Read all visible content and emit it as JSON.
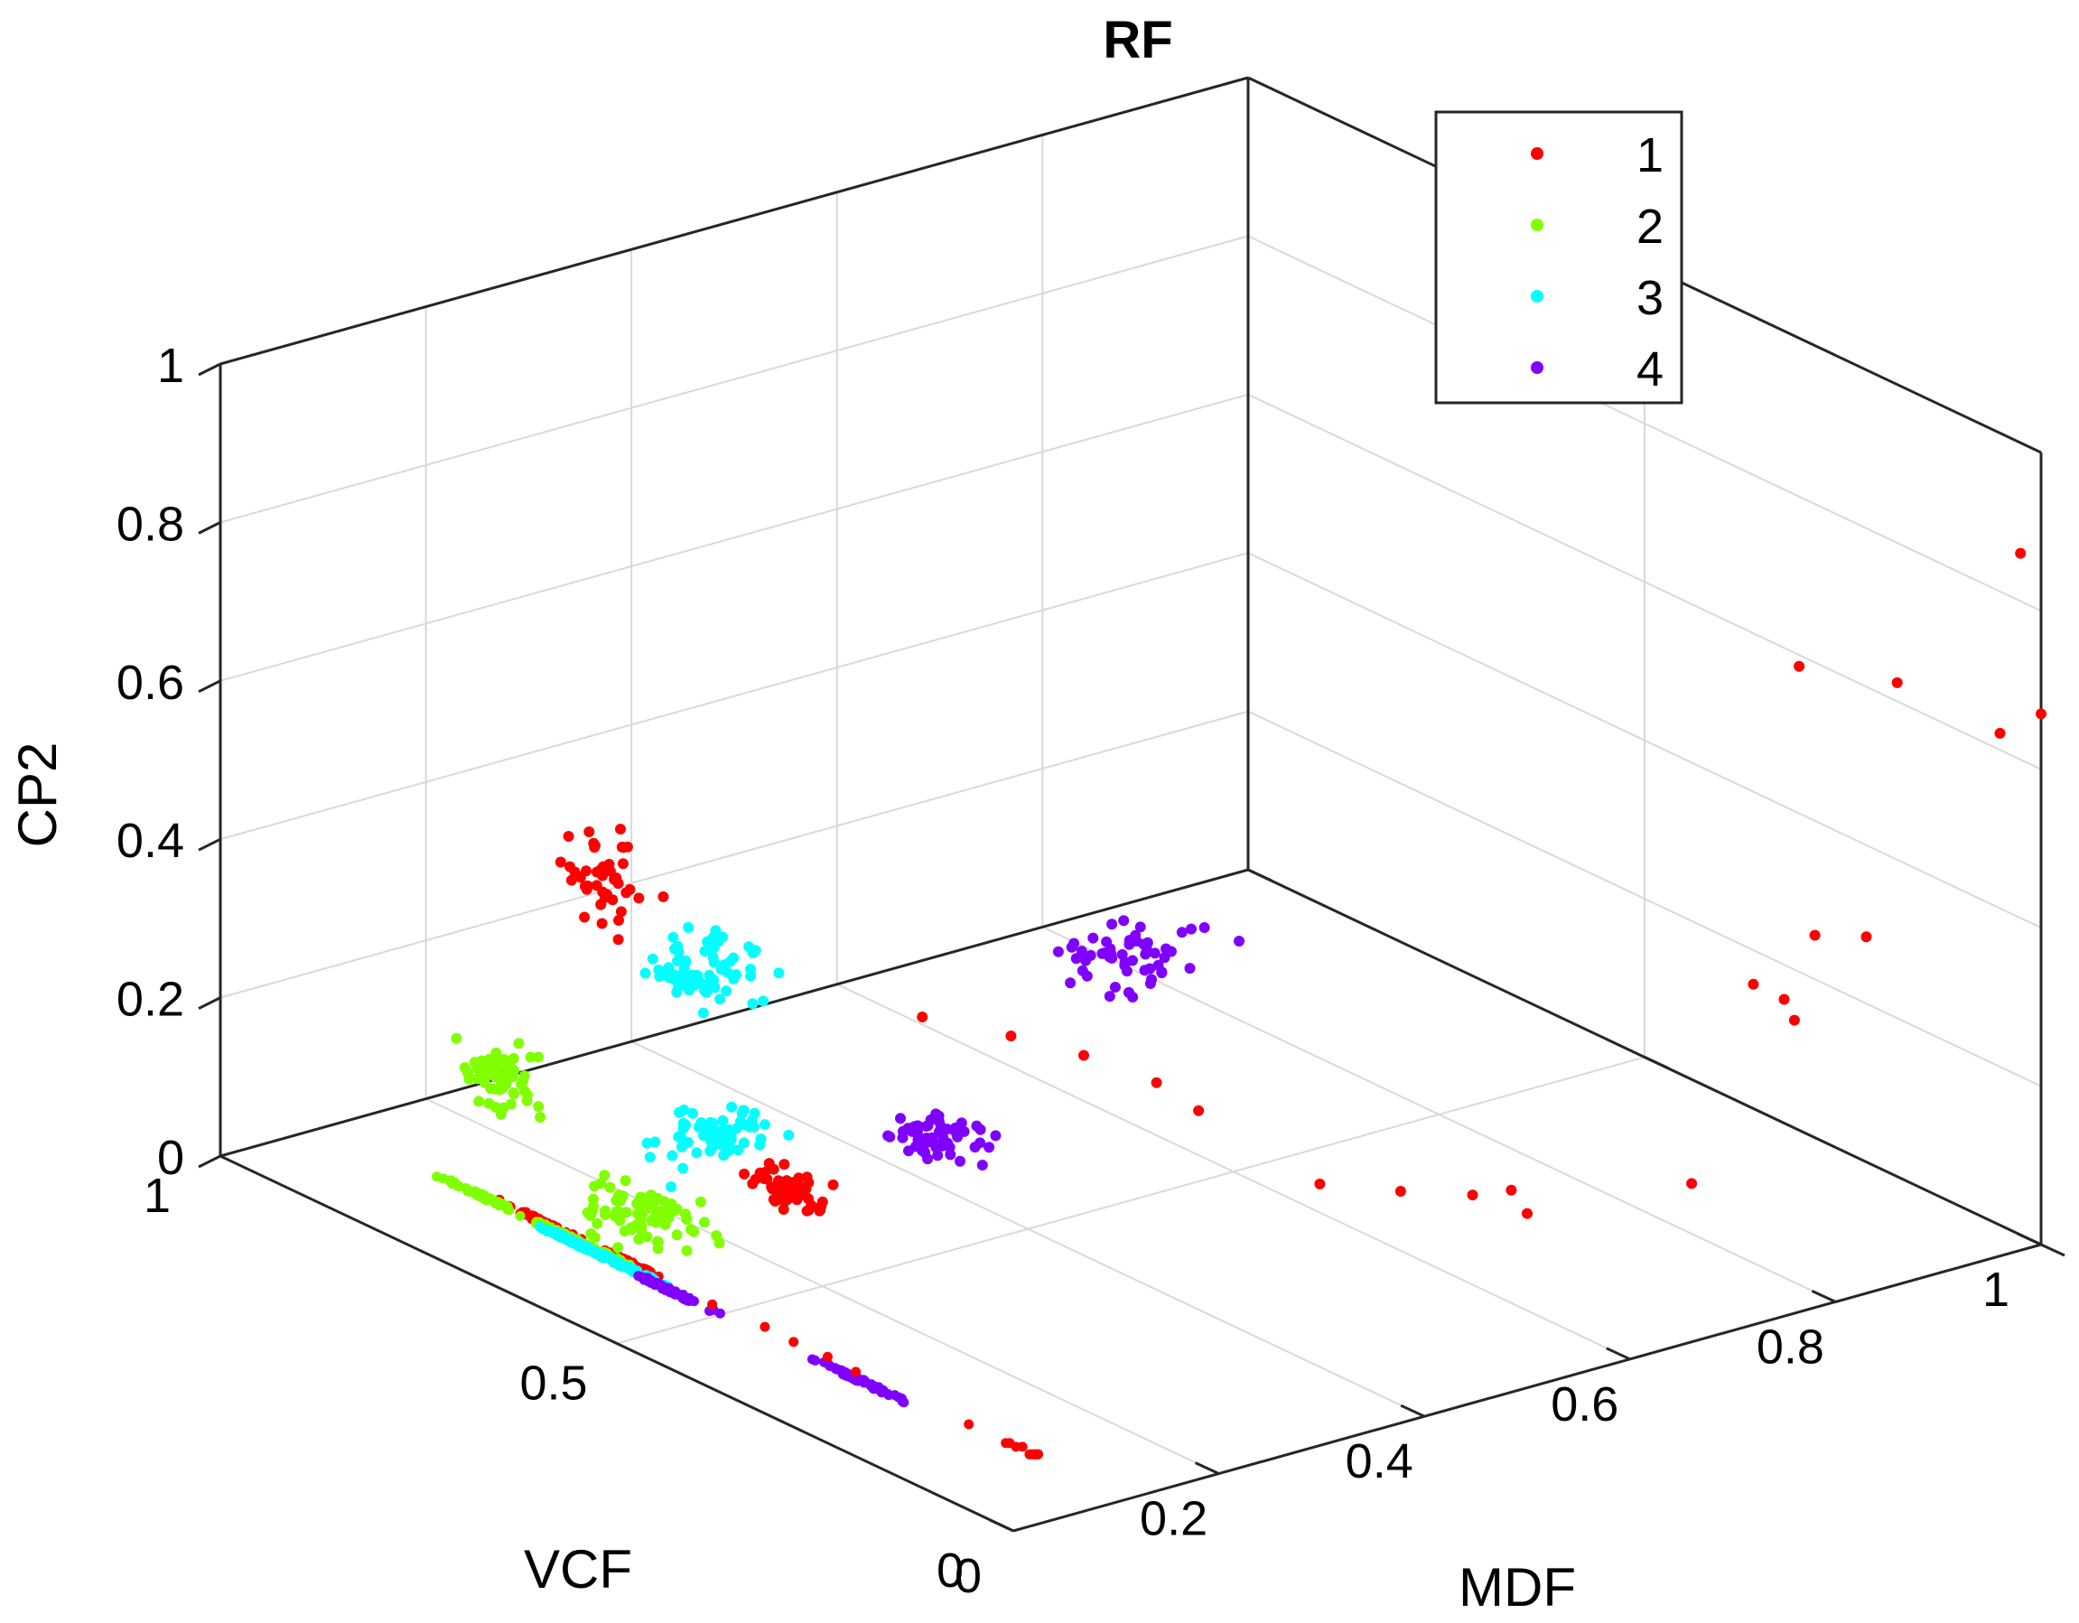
{
  "chart_data": {
    "type": "scatter3d",
    "title": "RF",
    "xlabel": "MDF",
    "ylabel": "VCF",
    "zlabel": "CP2",
    "xlim": [
      0,
      1
    ],
    "ylim": [
      0,
      1
    ],
    "zlim": [
      0,
      1
    ],
    "grid": true,
    "legend": "top-right",
    "x_ticks": [
      "0",
      "0.2",
      "0.4",
      "0.6",
      "0.8",
      "1"
    ],
    "y_ticks": [
      "0",
      "0.5",
      "1"
    ],
    "z_ticks": [
      "0",
      "0.2",
      "0.4",
      "0.6",
      "0.8",
      "1"
    ],
    "series": [
      {
        "name": "1",
        "color": "#ff0000"
      },
      {
        "name": "2",
        "color": "#80ff00"
      },
      {
        "name": "3",
        "color": "#00ffff"
      },
      {
        "name": "4",
        "color": "#8000ff"
      }
    ],
    "clusters": [
      {
        "series": 0,
        "n": 45,
        "x": 0.08,
        "y": 0.62,
        "z": 0.5,
        "sx": 0.03,
        "sy": 0.04,
        "sz": 0.05
      },
      {
        "series": 0,
        "n": 55,
        "x": 0.18,
        "y": 0.52,
        "z": 0.12,
        "sx": 0.02,
        "sy": 0.03,
        "sz": 0.02
      },
      {
        "series": 1,
        "n": 60,
        "x": 0.04,
        "y": 0.7,
        "z": 0.22,
        "sx": 0.02,
        "sy": 0.04,
        "sz": 0.03
      },
      {
        "series": 1,
        "n": 80,
        "x": 0.08,
        "y": 0.58,
        "z": 0.1,
        "sx": 0.025,
        "sy": 0.05,
        "sz": 0.03
      },
      {
        "series": 2,
        "n": 70,
        "x": 0.1,
        "y": 0.52,
        "z": 0.43,
        "sx": 0.03,
        "sy": 0.04,
        "sz": 0.04
      },
      {
        "series": 2,
        "n": 65,
        "x": 0.16,
        "y": 0.58,
        "z": 0.17,
        "sx": 0.045,
        "sy": 0.03,
        "sz": 0.02
      },
      {
        "series": 3,
        "n": 55,
        "x": 0.28,
        "y": 0.22,
        "z": 0.52,
        "sx": 0.05,
        "sy": 0.05,
        "sz": 0.02
      },
      {
        "series": 3,
        "n": 55,
        "x": 0.28,
        "y": 0.46,
        "z": 0.18,
        "sx": 0.025,
        "sy": 0.035,
        "sz": 0.02
      }
    ],
    "points": [
      {
        "series": 0,
        "x": 0.22,
        "y": 0.4,
        "z": 0.38
      },
      {
        "series": 0,
        "x": 0.26,
        "y": 0.34,
        "z": 0.37
      },
      {
        "series": 0,
        "x": 0.3,
        "y": 0.3,
        "z": 0.35
      },
      {
        "series": 0,
        "x": 0.34,
        "y": 0.26,
        "z": 0.32
      },
      {
        "series": 0,
        "x": 0.35,
        "y": 0.22,
        "z": 0.3
      },
      {
        "series": 0,
        "x": 0.36,
        "y": 0.08,
        "z": 0.27
      },
      {
        "series": 0,
        "x": 0.4,
        "y": 0.03,
        "z": 0.27
      },
      {
        "series": 0,
        "x": 0.47,
        "y": 0.03,
        "z": 0.24
      },
      {
        "series": 0,
        "x": 0.5,
        "y": 0.02,
        "z": 0.24
      },
      {
        "series": 0,
        "x": 0.5,
        "y": 0.0,
        "z": 0.22
      },
      {
        "series": 0,
        "x": 0.66,
        "y": 0.0,
        "z": 0.2
      },
      {
        "series": 0,
        "x": 0.72,
        "y": 0.0,
        "z": 0.43
      },
      {
        "series": 0,
        "x": 0.78,
        "y": 0.0,
        "z": 0.47
      },
      {
        "series": 0,
        "x": 0.75,
        "y": 0.0,
        "z": 0.4
      },
      {
        "series": 0,
        "x": 0.76,
        "y": 0.0,
        "z": 0.37
      },
      {
        "series": 0,
        "x": 0.83,
        "y": 0.0,
        "z": 0.45
      },
      {
        "series": 0,
        "x": 0.78,
        "y": 0.02,
        "z": 0.8
      },
      {
        "series": 0,
        "x": 0.86,
        "y": 0.0,
        "z": 0.76
      },
      {
        "series": 0,
        "x": 0.96,
        "y": 0.0,
        "z": 0.66
      },
      {
        "series": 0,
        "x": 0.98,
        "y": 0.0,
        "z": 0.88
      },
      {
        "series": 0,
        "x": 1.0,
        "y": 0.0,
        "z": 0.67
      }
    ]
  }
}
